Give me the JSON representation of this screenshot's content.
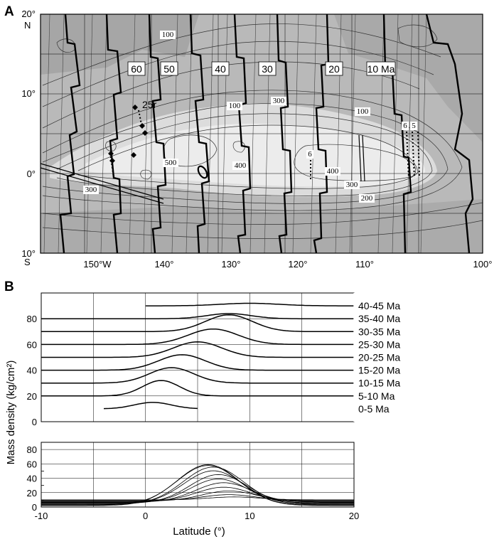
{
  "panel_a": {
    "label": "A",
    "lat_ticks": [
      "20°",
      "10°",
      "0°",
      "10°"
    ],
    "hemisphere_n": "N",
    "hemisphere_s": "S",
    "lon_ticks": [
      "150°W",
      "140°",
      "130°",
      "120°",
      "110°",
      "100°"
    ],
    "age_labels": [
      "60",
      "50",
      "40",
      "30",
      "20",
      "10 Ma"
    ],
    "chron_label": "25r",
    "contour_labels": [
      "100",
      "300",
      "100",
      "500",
      "400",
      "6",
      "400",
      "300",
      "100",
      "6",
      "5",
      "200",
      "300"
    ]
  },
  "chart_data": [
    {
      "type": "line",
      "panel": "B",
      "ylabel": "Mass density (kg/cm²)",
      "xlabel": "Latitude (°)",
      "xlim": [
        -10,
        20
      ],
      "ylim": [
        0,
        100
      ],
      "yticks": [
        "0",
        "20",
        "40",
        "60",
        "80"
      ],
      "series": [
        {
          "name": "0-5 Ma",
          "baseline": 10,
          "peak_x": 0.7,
          "peak_height": 5,
          "width": 2.5
        },
        {
          "name": "5-10 Ma",
          "baseline": 20,
          "peak_x": 1.5,
          "peak_height": 12,
          "width": 2.5
        },
        {
          "name": "10-15 Ma",
          "baseline": 30,
          "peak_x": 2.5,
          "peak_height": 12,
          "width": 3.0
        },
        {
          "name": "15-20 Ma",
          "baseline": 40,
          "peak_x": 3.5,
          "peak_height": 12,
          "width": 3.2
        },
        {
          "name": "20-25 Ma",
          "baseline": 50,
          "peak_x": 5.0,
          "peak_height": 12,
          "width": 3.3
        },
        {
          "name": "25-30 Ma",
          "baseline": 60,
          "peak_x": 6.5,
          "peak_height": 12,
          "width": 3.4
        },
        {
          "name": "30-35 Ma",
          "baseline": 70,
          "peak_x": 8.0,
          "peak_height": 13,
          "width": 3.2
        },
        {
          "name": "35-40 Ma",
          "baseline": 80,
          "peak_x": 8.0,
          "peak_height": 4,
          "width": 3.0
        },
        {
          "name": "40-45 Ma",
          "baseline": 90,
          "peak_x": 10.0,
          "peak_height": 2,
          "width": 4.0
        }
      ]
    },
    {
      "type": "line",
      "panel": "B-lower",
      "xlabel": "Latitude (°)",
      "xlim": [
        -10,
        20
      ],
      "ylim": [
        0,
        90
      ],
      "xticks": [
        "-10",
        "0",
        "10",
        "20"
      ],
      "yticks": [
        "0",
        "20",
        "40",
        "60",
        "80"
      ],
      "yticks_minor": [
        "10",
        "30",
        "50"
      ],
      "series": [
        {
          "peak_x": 6.0,
          "peak": 57,
          "width": 4.2
        },
        {
          "peak_x": 6.0,
          "peak": 55,
          "width": 4.2
        },
        {
          "peak_x": 6.5,
          "peak": 52,
          "width": 4.1
        },
        {
          "peak_x": 6.5,
          "peak": 46,
          "width": 4.0
        },
        {
          "peak_x": 7.0,
          "peak": 40,
          "width": 3.9
        },
        {
          "peak_x": 7.0,
          "peak": 33,
          "width": 3.8
        },
        {
          "peak_x": 7.5,
          "peak": 27,
          "width": 3.8
        },
        {
          "peak_x": 7.5,
          "peak": 20,
          "width": 3.7
        },
        {
          "peak_x": 8.0,
          "peak": 14,
          "width": 3.6
        },
        {
          "peak_x": 8.0,
          "peak": 8,
          "width": 3.6
        },
        {
          "peak_x": 8.5,
          "peak": 4,
          "width": 3.5
        }
      ]
    }
  ],
  "panel_b": {
    "label": "B"
  }
}
